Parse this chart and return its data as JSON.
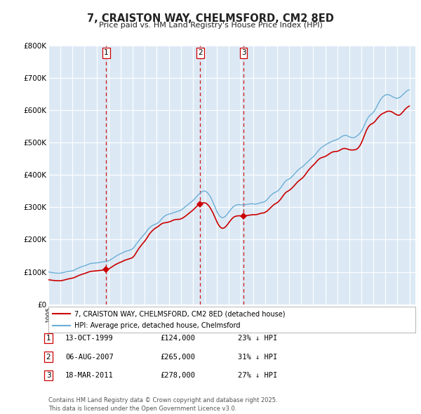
{
  "title": "7, CRAISTON WAY, CHELMSFORD, CM2 8ED",
  "subtitle": "Price paid vs. HM Land Registry's House Price Index (HPI)",
  "hpi_color": "#6baed6",
  "price_color": "#cc0000",
  "dashed_color": "#cc0000",
  "background_color": "#ffffff",
  "chart_bg_color": "#dce9f5",
  "grid_color": "#ffffff",
  "ylim": [
    0,
    800000
  ],
  "yticks": [
    0,
    100000,
    200000,
    300000,
    400000,
    500000,
    600000,
    700000,
    800000
  ],
  "ytick_labels": [
    "£0",
    "£100K",
    "£200K",
    "£300K",
    "£400K",
    "£500K",
    "£600K",
    "£700K",
    "£800K"
  ],
  "xlim_start": 1995.0,
  "xlim_end": 2025.5,
  "transactions": [
    {
      "label": "1",
      "date": "13-OCT-1999",
      "year": 1999.79,
      "price": 124000,
      "pct": "23%",
      "dir": "↓"
    },
    {
      "label": "2",
      "date": "06-AUG-2007",
      "year": 2007.6,
      "price": 265000,
      "pct": "31%",
      "dir": "↓"
    },
    {
      "label": "3",
      "date": "18-MAR-2011",
      "year": 2011.21,
      "price": 278000,
      "pct": "27%",
      "dir": "↓"
    }
  ],
  "legend_line1": "7, CRAISTON WAY, CHELMSFORD, CM2 8ED (detached house)",
  "legend_line2": "HPI: Average price, detached house, Chelmsford",
  "footnote": "Contains HM Land Registry data © Crown copyright and database right 2025.\nThis data is licensed under the Open Government Licence v3.0.",
  "hpi_data_years": [
    1995.0,
    1995.083,
    1995.167,
    1995.25,
    1995.333,
    1995.417,
    1995.5,
    1995.583,
    1995.667,
    1995.75,
    1995.833,
    1995.917,
    1996.0,
    1996.083,
    1996.167,
    1996.25,
    1996.333,
    1996.417,
    1996.5,
    1996.583,
    1996.667,
    1996.75,
    1996.833,
    1996.917,
    1997.0,
    1997.083,
    1997.167,
    1997.25,
    1997.333,
    1997.417,
    1997.5,
    1997.583,
    1997.667,
    1997.75,
    1997.833,
    1997.917,
    1998.0,
    1998.083,
    1998.167,
    1998.25,
    1998.333,
    1998.417,
    1998.5,
    1998.583,
    1998.667,
    1998.75,
    1998.833,
    1998.917,
    1999.0,
    1999.083,
    1999.167,
    1999.25,
    1999.333,
    1999.417,
    1999.5,
    1999.583,
    1999.667,
    1999.75,
    1999.833,
    1999.917,
    2000.0,
    2000.083,
    2000.167,
    2000.25,
    2000.333,
    2000.417,
    2000.5,
    2000.583,
    2000.667,
    2000.75,
    2000.833,
    2000.917,
    2001.0,
    2001.083,
    2001.167,
    2001.25,
    2001.333,
    2001.417,
    2001.5,
    2001.583,
    2001.667,
    2001.75,
    2001.833,
    2001.917,
    2002.0,
    2002.083,
    2002.167,
    2002.25,
    2002.333,
    2002.417,
    2002.5,
    2002.583,
    2002.667,
    2002.75,
    2002.833,
    2002.917,
    2003.0,
    2003.083,
    2003.167,
    2003.25,
    2003.333,
    2003.417,
    2003.5,
    2003.583,
    2003.667,
    2003.75,
    2003.833,
    2003.917,
    2004.0,
    2004.083,
    2004.167,
    2004.25,
    2004.333,
    2004.417,
    2004.5,
    2004.583,
    2004.667,
    2004.75,
    2004.833,
    2004.917,
    2005.0,
    2005.083,
    2005.167,
    2005.25,
    2005.333,
    2005.417,
    2005.5,
    2005.583,
    2005.667,
    2005.75,
    2005.833,
    2005.917,
    2006.0,
    2006.083,
    2006.167,
    2006.25,
    2006.333,
    2006.417,
    2006.5,
    2006.583,
    2006.667,
    2006.75,
    2006.833,
    2006.917,
    2007.0,
    2007.083,
    2007.167,
    2007.25,
    2007.333,
    2007.417,
    2007.5,
    2007.583,
    2007.667,
    2007.75,
    2007.833,
    2007.917,
    2008.0,
    2008.083,
    2008.167,
    2008.25,
    2008.333,
    2008.417,
    2008.5,
    2008.583,
    2008.667,
    2008.75,
    2008.833,
    2008.917,
    2009.0,
    2009.083,
    2009.167,
    2009.25,
    2009.333,
    2009.417,
    2009.5,
    2009.583,
    2009.667,
    2009.75,
    2009.833,
    2009.917,
    2010.0,
    2010.083,
    2010.167,
    2010.25,
    2010.333,
    2010.417,
    2010.5,
    2010.583,
    2010.667,
    2010.75,
    2010.833,
    2010.917,
    2011.0,
    2011.083,
    2011.167,
    2011.25,
    2011.333,
    2011.417,
    2011.5,
    2011.583,
    2011.667,
    2011.75,
    2011.833,
    2011.917,
    2012.0,
    2012.083,
    2012.167,
    2012.25,
    2012.333,
    2012.417,
    2012.5,
    2012.583,
    2012.667,
    2012.75,
    2012.833,
    2012.917,
    2013.0,
    2013.083,
    2013.167,
    2013.25,
    2013.333,
    2013.417,
    2013.5,
    2013.583,
    2013.667,
    2013.75,
    2013.833,
    2013.917,
    2014.0,
    2014.083,
    2014.167,
    2014.25,
    2014.333,
    2014.417,
    2014.5,
    2014.583,
    2014.667,
    2014.75,
    2014.833,
    2014.917,
    2015.0,
    2015.083,
    2015.167,
    2015.25,
    2015.333,
    2015.417,
    2015.5,
    2015.583,
    2015.667,
    2015.75,
    2015.833,
    2015.917,
    2016.0,
    2016.083,
    2016.167,
    2016.25,
    2016.333,
    2016.417,
    2016.5,
    2016.583,
    2016.667,
    2016.75,
    2016.833,
    2016.917,
    2017.0,
    2017.083,
    2017.167,
    2017.25,
    2017.333,
    2017.417,
    2017.5,
    2017.583,
    2017.667,
    2017.75,
    2017.833,
    2017.917,
    2018.0,
    2018.083,
    2018.167,
    2018.25,
    2018.333,
    2018.417,
    2018.5,
    2018.583,
    2018.667,
    2018.75,
    2018.833,
    2018.917,
    2019.0,
    2019.083,
    2019.167,
    2019.25,
    2019.333,
    2019.417,
    2019.5,
    2019.583,
    2019.667,
    2019.75,
    2019.833,
    2019.917,
    2020.0,
    2020.083,
    2020.167,
    2020.25,
    2020.333,
    2020.417,
    2020.5,
    2020.583,
    2020.667,
    2020.75,
    2020.833,
    2020.917,
    2021.0,
    2021.083,
    2021.167,
    2021.25,
    2021.333,
    2021.417,
    2021.5,
    2021.583,
    2021.667,
    2021.75,
    2021.833,
    2021.917,
    2022.0,
    2022.083,
    2022.167,
    2022.25,
    2022.333,
    2022.417,
    2022.5,
    2022.583,
    2022.667,
    2022.75,
    2022.833,
    2022.917,
    2023.0,
    2023.083,
    2023.167,
    2023.25,
    2023.333,
    2023.417,
    2023.5,
    2023.583,
    2023.667,
    2023.75,
    2023.833,
    2023.917,
    2024.0,
    2024.083,
    2024.167,
    2024.25,
    2024.333,
    2024.417,
    2024.5,
    2024.583,
    2024.667,
    2024.75,
    2024.833,
    2024.917,
    2025.0
  ],
  "hpi_data_vals": [
    100000,
    99500,
    99000,
    98500,
    98000,
    97500,
    97000,
    96800,
    96600,
    96400,
    96200,
    96000,
    96200,
    96800,
    97500,
    98200,
    99000,
    99800,
    100500,
    101200,
    101800,
    102300,
    102700,
    103000,
    103500,
    104500,
    106000,
    108000,
    109500,
    111000,
    112500,
    113800,
    115000,
    116000,
    117000,
    118000,
    119000,
    120000,
    121000,
    122500,
    124000,
    125000,
    126000,
    126500,
    127000,
    127200,
    127500,
    127800,
    128000,
    128500,
    129000,
    129500,
    130000,
    130500,
    131000,
    131500,
    132000,
    132500,
    133000,
    133500,
    134500,
    136000,
    138000,
    140000,
    142000,
    144000,
    146000,
    148000,
    150000,
    152000,
    153500,
    155000,
    156500,
    158000,
    159500,
    161000,
    162500,
    163500,
    164500,
    165500,
    166500,
    167500,
    168500,
    170000,
    172000,
    175000,
    179000,
    183500,
    188000,
    192000,
    196000,
    200000,
    204000,
    207500,
    211000,
    214500,
    218000,
    222000,
    226500,
    230500,
    234000,
    237000,
    239500,
    242000,
    244000,
    245500,
    246800,
    248000,
    249500,
    251500,
    254000,
    257000,
    260500,
    264000,
    267500,
    270500,
    273000,
    275000,
    276500,
    277500,
    278500,
    279500,
    280500,
    281500,
    282500,
    283500,
    284500,
    285500,
    286500,
    287500,
    288500,
    289500,
    291000,
    293000,
    295500,
    298000,
    300500,
    303000,
    305500,
    308000,
    310500,
    313000,
    315500,
    318000,
    320500,
    323500,
    326500,
    330000,
    333500,
    337000,
    340000,
    343000,
    346000,
    348000,
    349500,
    350500,
    350000,
    348500,
    346500,
    343500,
    339500,
    335000,
    329500,
    323000,
    316000,
    308500,
    301000,
    294000,
    287000,
    281000,
    276000,
    272000,
    269500,
    268000,
    268000,
    269000,
    271000,
    274000,
    277500,
    281500,
    286000,
    290000,
    294000,
    297500,
    300500,
    303000,
    305000,
    306500,
    307500,
    308000,
    308200,
    308000,
    307500,
    307200,
    307000,
    307500,
    308000,
    308500,
    309000,
    309500,
    310000,
    310500,
    311000,
    311000,
    310500,
    310000,
    309500,
    310000,
    310500,
    311500,
    312500,
    313500,
    314500,
    315000,
    315500,
    316500,
    318000,
    320500,
    323500,
    327000,
    331000,
    334500,
    337500,
    340000,
    342500,
    344500,
    346000,
    347500,
    349000,
    351500,
    354500,
    358000,
    362000,
    366500,
    371000,
    375500,
    379500,
    382500,
    384500,
    386000,
    387500,
    389500,
    392000,
    395000,
    398500,
    402000,
    405500,
    409000,
    412500,
    415500,
    418000,
    420500,
    422500,
    424500,
    427000,
    430000,
    433000,
    436000,
    439000,
    442000,
    445000,
    448000,
    451000,
    453500,
    456000,
    459000,
    462500,
    466500,
    470500,
    474500,
    478000,
    481000,
    484000,
    486500,
    488500,
    490500,
    492500,
    494500,
    496500,
    498000,
    499500,
    501000,
    502500,
    504000,
    505500,
    506500,
    507500,
    508500,
    510000,
    511500,
    513500,
    515500,
    517500,
    519500,
    521000,
    522000,
    522500,
    522000,
    521000,
    519500,
    518000,
    516500,
    515500,
    515000,
    515000,
    515500,
    517000,
    519000,
    521500,
    524000,
    527000,
    530500,
    535000,
    540500,
    547000,
    554000,
    561000,
    567500,
    573500,
    578500,
    582500,
    585500,
    588000,
    590000,
    594000,
    598000,
    603000,
    609000,
    615000,
    621000,
    627000,
    632000,
    636500,
    640000,
    643000,
    645500,
    647000,
    648000,
    648500,
    648000,
    647000,
    645500,
    644000,
    642000,
    640500,
    639000,
    638000,
    637000,
    637000,
    638000,
    639500,
    641500,
    644000,
    647000,
    650000,
    653000,
    656000,
    659000,
    661000,
    662000,
    663000
  ],
  "price_data_years": [
    1995.0,
    1995.083,
    1995.167,
    1995.25,
    1995.333,
    1995.417,
    1995.5,
    1995.583,
    1995.667,
    1995.75,
    1995.833,
    1995.917,
    1996.0,
    1996.083,
    1996.167,
    1996.25,
    1996.333,
    1996.417,
    1996.5,
    1996.583,
    1996.667,
    1996.75,
    1996.833,
    1996.917,
    1997.0,
    1997.083,
    1997.167,
    1997.25,
    1997.333,
    1997.417,
    1997.5,
    1997.583,
    1997.667,
    1997.75,
    1997.833,
    1997.917,
    1998.0,
    1998.083,
    1998.167,
    1998.25,
    1998.333,
    1998.417,
    1998.5,
    1998.583,
    1998.667,
    1998.75,
    1998.833,
    1998.917,
    1999.0,
    1999.083,
    1999.167,
    1999.25,
    1999.333,
    1999.417,
    1999.5,
    1999.583,
    1999.667,
    1999.75,
    1999.833,
    1999.917,
    2000.0,
    2000.083,
    2000.167,
    2000.25,
    2000.333,
    2000.417,
    2000.5,
    2000.583,
    2000.667,
    2000.75,
    2000.833,
    2000.917,
    2001.0,
    2001.083,
    2001.167,
    2001.25,
    2001.333,
    2001.417,
    2001.5,
    2001.583,
    2001.667,
    2001.75,
    2001.833,
    2001.917,
    2002.0,
    2002.083,
    2002.167,
    2002.25,
    2002.333,
    2002.417,
    2002.5,
    2002.583,
    2002.667,
    2002.75,
    2002.833,
    2002.917,
    2003.0,
    2003.083,
    2003.167,
    2003.25,
    2003.333,
    2003.417,
    2003.5,
    2003.583,
    2003.667,
    2003.75,
    2003.833,
    2003.917,
    2004.0,
    2004.083,
    2004.167,
    2004.25,
    2004.333,
    2004.417,
    2004.5,
    2004.583,
    2004.667,
    2004.75,
    2004.833,
    2004.917,
    2005.0,
    2005.083,
    2005.167,
    2005.25,
    2005.333,
    2005.417,
    2005.5,
    2005.583,
    2005.667,
    2005.75,
    2005.833,
    2005.917,
    2006.0,
    2006.083,
    2006.167,
    2006.25,
    2006.333,
    2006.417,
    2006.5,
    2006.583,
    2006.667,
    2006.75,
    2006.833,
    2006.917,
    2007.0,
    2007.083,
    2007.167,
    2007.25,
    2007.333,
    2007.417,
    2007.5,
    2007.583,
    2007.667,
    2007.75,
    2007.833,
    2007.917,
    2008.0,
    2008.083,
    2008.167,
    2008.25,
    2008.333,
    2008.417,
    2008.5,
    2008.583,
    2008.667,
    2008.75,
    2008.833,
    2008.917,
    2009.0,
    2009.083,
    2009.167,
    2009.25,
    2009.333,
    2009.417,
    2009.5,
    2009.583,
    2009.667,
    2009.75,
    2009.833,
    2009.917,
    2010.0,
    2010.083,
    2010.167,
    2010.25,
    2010.333,
    2010.417,
    2010.5,
    2010.583,
    2010.667,
    2010.75,
    2010.833,
    2010.917,
    2011.0,
    2011.083,
    2011.167,
    2011.25,
    2011.333,
    2011.417,
    2011.5,
    2011.583,
    2011.667,
    2011.75,
    2011.833,
    2011.917,
    2012.0,
    2012.083,
    2012.167,
    2012.25,
    2012.333,
    2012.417,
    2012.5,
    2012.583,
    2012.667,
    2012.75,
    2012.833,
    2012.917,
    2013.0,
    2013.083,
    2013.167,
    2013.25,
    2013.333,
    2013.417,
    2013.5,
    2013.583,
    2013.667,
    2013.75,
    2013.833,
    2013.917,
    2014.0,
    2014.083,
    2014.167,
    2014.25,
    2014.333,
    2014.417,
    2014.5,
    2014.583,
    2014.667,
    2014.75,
    2014.833,
    2014.917,
    2015.0,
    2015.083,
    2015.167,
    2015.25,
    2015.333,
    2015.417,
    2015.5,
    2015.583,
    2015.667,
    2015.75,
    2015.833,
    2015.917,
    2016.0,
    2016.083,
    2016.167,
    2016.25,
    2016.333,
    2016.417,
    2016.5,
    2016.583,
    2016.667,
    2016.75,
    2016.833,
    2016.917,
    2017.0,
    2017.083,
    2017.167,
    2017.25,
    2017.333,
    2017.417,
    2017.5,
    2017.583,
    2017.667,
    2017.75,
    2017.833,
    2017.917,
    2018.0,
    2018.083,
    2018.167,
    2018.25,
    2018.333,
    2018.417,
    2018.5,
    2018.583,
    2018.667,
    2018.75,
    2018.833,
    2018.917,
    2019.0,
    2019.083,
    2019.167,
    2019.25,
    2019.333,
    2019.417,
    2019.5,
    2019.583,
    2019.667,
    2019.75,
    2019.833,
    2019.917,
    2020.0,
    2020.083,
    2020.167,
    2020.25,
    2020.333,
    2020.417,
    2020.5,
    2020.583,
    2020.667,
    2020.75,
    2020.833,
    2020.917,
    2021.0,
    2021.083,
    2021.167,
    2021.25,
    2021.333,
    2021.417,
    2021.5,
    2021.583,
    2021.667,
    2021.75,
    2021.833,
    2021.917,
    2022.0,
    2022.083,
    2022.167,
    2022.25,
    2022.333,
    2022.417,
    2022.5,
    2022.583,
    2022.667,
    2022.75,
    2022.833,
    2022.917,
    2023.0,
    2023.083,
    2023.167,
    2023.25,
    2023.333,
    2023.417,
    2023.5,
    2023.583,
    2023.667,
    2023.75,
    2023.833,
    2023.917,
    2024.0,
    2024.083,
    2024.167,
    2024.25,
    2024.333,
    2024.417,
    2024.5,
    2024.583,
    2024.667,
    2024.75,
    2024.833,
    2024.917,
    2025.0
  ],
  "price_data_vals": [
    76000,
    75500,
    75000,
    74500,
    74000,
    73700,
    73400,
    73200,
    73000,
    72900,
    72800,
    72700,
    72800,
    73200,
    73800,
    74500,
    75300,
    76200,
    77000,
    77800,
    78500,
    79200,
    79800,
    80300,
    80900,
    81800,
    83000,
    84500,
    86000,
    87500,
    88800,
    90000,
    91200,
    92200,
    93200,
    94200,
    95000,
    96000,
    97200,
    98500,
    99800,
    100800,
    101500,
    102000,
    102300,
    102500,
    102800,
    103100,
    103300,
    103600,
    104000,
    104400,
    104800,
    105200,
    105600,
    106000,
    106400,
    107000,
    107700,
    108400,
    109500,
    111000,
    113000,
    115000,
    117000,
    119000,
    121000,
    123000,
    124500,
    126000,
    127500,
    129000,
    130000,
    131500,
    133000,
    134500,
    136000,
    137000,
    138000,
    139000,
    140000,
    141000,
    142000,
    143000,
    145000,
    148000,
    152000,
    157000,
    162000,
    167000,
    172000,
    176000,
    180000,
    184000,
    188000,
    191500,
    195000,
    199500,
    204000,
    209000,
    214000,
    218500,
    222000,
    225500,
    228500,
    231500,
    234000,
    236000,
    238000,
    240000,
    242000,
    244500,
    247000,
    249000,
    250500,
    251500,
    252000,
    252500,
    253000,
    253500,
    254500,
    255500,
    256500,
    258000,
    259500,
    260500,
    261500,
    262000,
    262500,
    262500,
    262800,
    263000,
    264000,
    265500,
    267000,
    269000,
    271000,
    273500,
    276000,
    278500,
    281000,
    283500,
    286000,
    288500,
    291000,
    294000,
    297000,
    300000,
    303000,
    306000,
    308500,
    310500,
    312000,
    313000,
    313500,
    314000,
    313500,
    312500,
    310500,
    307500,
    304000,
    299500,
    294500,
    289000,
    283000,
    276000,
    269000,
    262000,
    255000,
    249000,
    244000,
    240000,
    237000,
    235500,
    235000,
    236000,
    238000,
    241000,
    244500,
    248500,
    253000,
    257000,
    261000,
    264500,
    267500,
    270000,
    271500,
    272500,
    273000,
    273500,
    273700,
    273500,
    273000,
    272800,
    272700,
    273000,
    273500,
    274000,
    274500,
    275000,
    275500,
    276000,
    276500,
    276800,
    277000,
    277000,
    277000,
    277300,
    277700,
    278500,
    279500,
    280500,
    281500,
    282000,
    282300,
    282800,
    284500,
    286000,
    288000,
    291000,
    294000,
    297000,
    300000,
    303000,
    306000,
    308500,
    310500,
    312000,
    314000,
    316500,
    319500,
    323000,
    327000,
    331500,
    336000,
    340000,
    343500,
    346500,
    348500,
    350000,
    352000,
    354500,
    357000,
    360000,
    363000,
    366500,
    370000,
    373500,
    377000,
    380000,
    382500,
    385000,
    387500,
    390000,
    393000,
    396500,
    400500,
    405000,
    409500,
    413500,
    417000,
    420500,
    424000,
    427000,
    430000,
    433000,
    436500,
    440000,
    443500,
    447000,
    449500,
    451500,
    453000,
    454000,
    455000,
    455800,
    457000,
    459000,
    461000,
    463000,
    465000,
    467000,
    469000,
    470500,
    471500,
    472000,
    472300,
    472500,
    473000,
    474000,
    475500,
    477000,
    479000,
    480500,
    481500,
    482000,
    481500,
    481000,
    480000,
    479000,
    478000,
    477500,
    477000,
    477000,
    477200,
    477500,
    478000,
    479000,
    481000,
    484000,
    488000,
    493000,
    499000,
    506000,
    514000,
    522000,
    530000,
    537500,
    543500,
    548500,
    552500,
    555500,
    557500,
    558500,
    561000,
    563500,
    567000,
    571000,
    575000,
    578500,
    582000,
    585000,
    587500,
    589500,
    591000,
    592000,
    594000,
    595500,
    596500,
    597000,
    597000,
    596500,
    595500,
    594000,
    592000,
    590000,
    588000,
    586500,
    585000,
    584500,
    585000,
    587000,
    590000,
    593500,
    597000,
    600500,
    604000,
    607000,
    609500,
    611500,
    613000
  ]
}
